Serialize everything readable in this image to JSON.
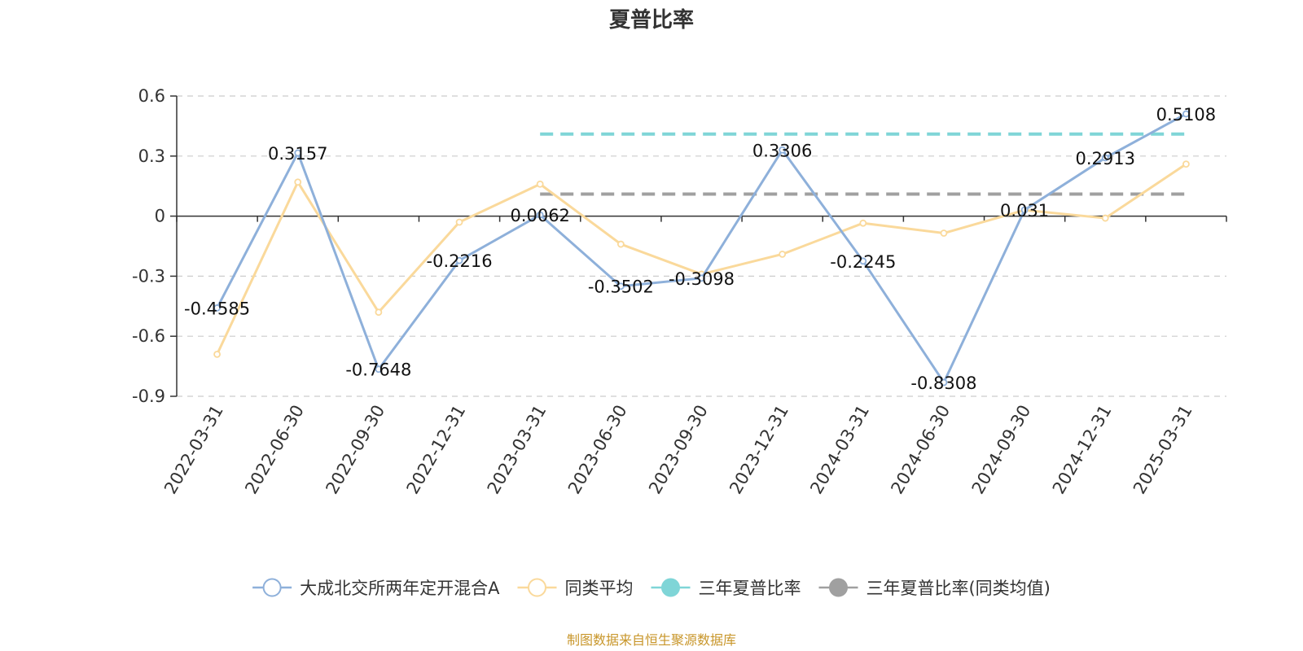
{
  "chart_data": {
    "type": "line",
    "title": "夏普比率",
    "categories": [
      "2022-03-31",
      "2022-06-30",
      "2022-09-30",
      "2022-12-31",
      "2023-03-31",
      "2023-06-30",
      "2023-09-30",
      "2023-12-31",
      "2024-03-31",
      "2024-06-30",
      "2024-09-30",
      "2024-12-31",
      "2025-03-31"
    ],
    "ylim": [
      -0.9,
      0.6
    ],
    "yticks": [
      0.6,
      0.3,
      0,
      -0.3,
      -0.6,
      -0.9
    ],
    "ytick_labels": [
      "0.6",
      "0.3",
      "0",
      "-0.3",
      "-0.6",
      "-0.9"
    ],
    "grid": true,
    "legend_position": "bottom",
    "series": [
      {
        "name": "大成北交所两年定开混合A",
        "color": "#8eb0da",
        "values": [
          -0.4585,
          0.3157,
          -0.7648,
          -0.2216,
          0.0062,
          -0.3502,
          -0.3098,
          0.3306,
          -0.2245,
          -0.8308,
          0.031,
          0.2913,
          0.5108
        ],
        "labels": [
          "-0.4585",
          "0.3157",
          "-0.7648",
          "-0.2216",
          "0.0062",
          "-0.3502",
          "-0.3098",
          "0.3306",
          "-0.2245",
          "-0.8308",
          "0.031",
          "0.2913",
          "0.5108"
        ]
      },
      {
        "name": "同类平均",
        "color": "#fad99b",
        "values": [
          -0.69,
          0.17,
          -0.48,
          -0.03,
          0.16,
          -0.14,
          -0.29,
          -0.19,
          -0.035,
          -0.085,
          0.03,
          -0.01,
          0.26
        ]
      },
      {
        "name": "三年夏普比率",
        "color": "#7fd5d7",
        "reference_value": 0.41,
        "x_start": "2023-03-31",
        "x_end": "2025-03-31"
      },
      {
        "name": "三年夏普比率(同类均值)",
        "color": "#a0a0a0",
        "reference_value": 0.11,
        "x_start": "2023-03-31",
        "x_end": "2025-03-31"
      }
    ]
  },
  "footer": {
    "source_text": "制图数据来自恒生聚源数据库"
  }
}
